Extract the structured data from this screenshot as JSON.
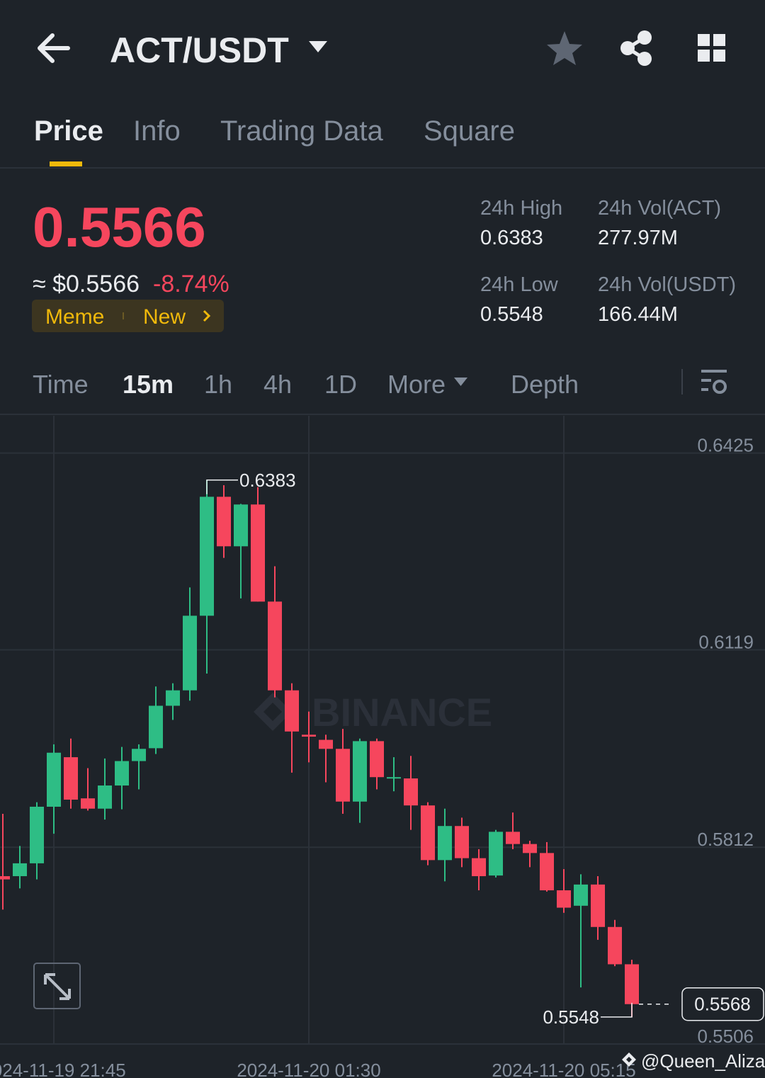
{
  "header": {
    "pair": "ACT/USDT"
  },
  "tabs": [
    "Price",
    "Info",
    "Trading Data",
    "Square"
  ],
  "ticker": {
    "price": "0.5566",
    "approx": "≈ $0.5566",
    "change": "-8.74%",
    "tags": [
      "Meme",
      "New"
    ]
  },
  "stats": [
    {
      "label": "24h High",
      "value": "0.6383"
    },
    {
      "label": "24h Vol(ACT)",
      "value": "277.97M"
    },
    {
      "label": "24h Low",
      "value": "0.5548"
    },
    {
      "label": "24h Vol(USDT)",
      "value": "166.44M"
    }
  ],
  "intervals": [
    "Time",
    "15m",
    "1h",
    "4h",
    "1D",
    "More",
    "Depth"
  ],
  "chart": {
    "type": "candlestick",
    "categories": [
      null,
      null,
      null,
      "2024-11-19 21:45",
      null,
      null,
      null,
      null,
      null,
      null,
      null,
      null,
      null,
      null,
      null,
      null,
      null,
      null,
      "2024-11-20 01:30",
      null,
      null,
      null,
      null,
      null,
      null,
      null,
      null,
      null,
      null,
      null,
      null,
      null,
      null,
      "2024-11-20 05:15",
      null,
      null,
      null,
      null
    ],
    "open": [
      0.5767,
      0.5767,
      0.5787,
      0.5875,
      0.5952,
      0.5888,
      0.5872,
      0.5908,
      0.5946,
      0.5966,
      0.6032,
      0.6056,
      0.6172,
      0.6357,
      0.628,
      0.6345,
      0.6194,
      0.6056,
      0.5987,
      0.5979,
      0.5965,
      0.5883,
      0.5977,
      0.5919,
      0.5919,
      0.5877,
      0.5792,
      0.5845,
      0.5795,
      0.5768,
      0.5836,
      0.5817,
      0.5803,
      0.5745,
      0.5721,
      0.5754,
      0.5688,
      0.563
    ],
    "high": [
      0.5864,
      0.5814,
      0.5882,
      0.5972,
      0.5981,
      0.5935,
      0.595,
      0.5968,
      0.5972,
      0.6062,
      0.6067,
      0.6216,
      0.6383,
      0.6375,
      0.6346,
      0.6372,
      0.6249,
      0.6067,
      0.6023,
      0.5987,
      0.5996,
      0.5981,
      0.5981,
      0.5952,
      0.5954,
      0.5882,
      0.5872,
      0.5858,
      0.5809,
      0.5839,
      0.5866,
      0.5822,
      0.582,
      0.5778,
      0.577,
      0.5767,
      0.5699,
      0.5637
    ],
    "low": [
      0.5715,
      0.5748,
      0.5762,
      0.5833,
      0.5872,
      0.5869,
      0.5855,
      0.5871,
      0.5902,
      0.5957,
      0.601,
      0.604,
      0.6082,
      0.6262,
      0.6199,
      0.6194,
      0.6045,
      0.5928,
      0.5944,
      0.5913,
      0.5864,
      0.585,
      0.5902,
      0.5899,
      0.5839,
      0.5784,
      0.5759,
      0.5781,
      0.5745,
      0.5765,
      0.5809,
      0.5781,
      0.5743,
      0.571,
      0.5594,
      0.5668,
      0.5627,
      0.5548
    ],
    "close": [
      0.5762,
      0.5787,
      0.5875,
      0.5959,
      0.5886,
      0.5872,
      0.5908,
      0.5946,
      0.5965,
      0.6032,
      0.6056,
      0.6172,
      0.6357,
      0.628,
      0.6345,
      0.6194,
      0.6056,
      0.5992,
      0.5984,
      0.5965,
      0.5883,
      0.5977,
      0.5921,
      0.5921,
      0.5877,
      0.5792,
      0.5845,
      0.5795,
      0.5767,
      0.5836,
      0.5817,
      0.5803,
      0.5745,
      0.5718,
      0.5754,
      0.5688,
      0.563,
      0.5568
    ],
    "up_color": "#2ebd85",
    "down_color": "#f6465d",
    "ylim": [
      0.5506,
      0.6483
    ],
    "yticks": [
      0.6425,
      0.6119,
      0.5812,
      0.5506
    ],
    "grid": true,
    "high_label": 0.6383,
    "low_label": 0.5548,
    "last_price": 0.5568
  },
  "watermark": "BINANCE",
  "credit": "@Queen_Aliza"
}
